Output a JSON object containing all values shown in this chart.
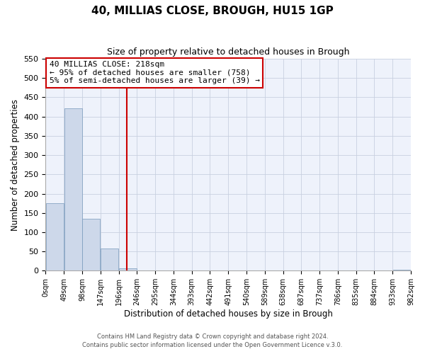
{
  "title": "40, MILLIAS CLOSE, BROUGH, HU15 1GP",
  "subtitle": "Size of property relative to detached houses in Brough",
  "xlabel": "Distribution of detached houses by size in Brough",
  "ylabel": "Number of detached properties",
  "bin_labels": [
    "0sqm",
    "49sqm",
    "98sqm",
    "147sqm",
    "196sqm",
    "246sqm",
    "295sqm",
    "344sqm",
    "393sqm",
    "442sqm",
    "491sqm",
    "540sqm",
    "589sqm",
    "638sqm",
    "687sqm",
    "737sqm",
    "786sqm",
    "835sqm",
    "884sqm",
    "933sqm",
    "982sqm"
  ],
  "bar_heights": [
    175,
    422,
    135,
    57,
    7,
    0,
    0,
    0,
    0,
    0,
    0,
    0,
    0,
    0,
    0,
    0,
    0,
    0,
    0,
    2
  ],
  "bar_color": "#cdd8ea",
  "bar_edge_color": "#7799bb",
  "property_line_x": 4.44,
  "property_line_color": "#cc0000",
  "annotation_title": "40 MILLIAS CLOSE: 218sqm",
  "annotation_line1": "← 95% of detached houses are smaller (758)",
  "annotation_line2": "5% of semi-detached houses are larger (39) →",
  "annotation_box_color": "#cc0000",
  "ylim": [
    0,
    550
  ],
  "yticks": [
    0,
    50,
    100,
    150,
    200,
    250,
    300,
    350,
    400,
    450,
    500,
    550
  ],
  "footer1": "Contains HM Land Registry data © Crown copyright and database right 2024.",
  "footer2": "Contains public sector information licensed under the Open Government Licence v.3.0.",
  "bg_color": "#eef2fb",
  "grid_color": "#c8d0e0"
}
